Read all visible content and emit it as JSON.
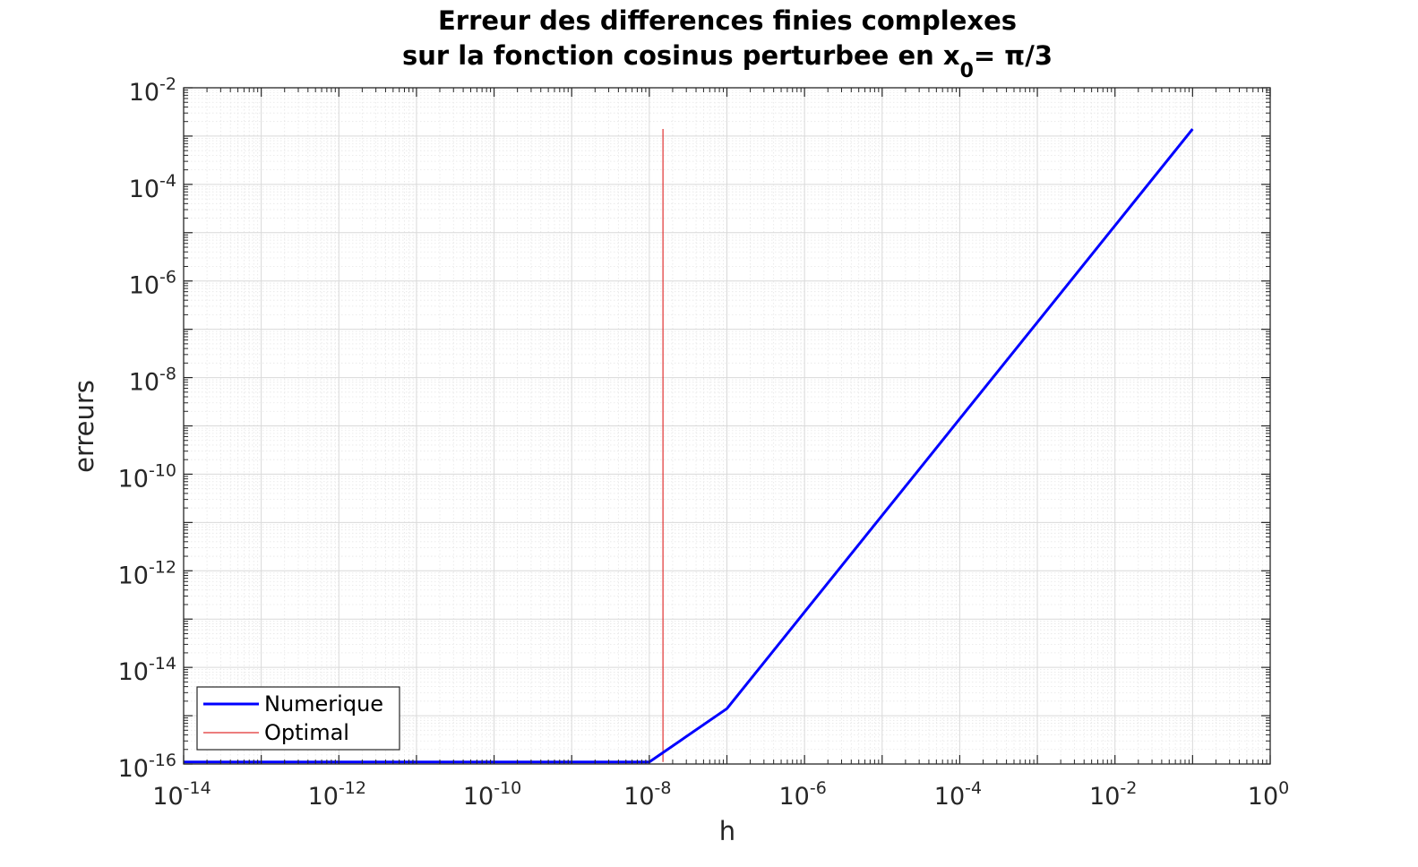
{
  "chart_data": {
    "type": "line",
    "title_line1": "Erreur des differences finies complexes",
    "title_line2_prefix": "sur la fonction cosinus perturbee en x",
    "title_line2_subscript": "0",
    "title_line2_suffix": "= π/3",
    "xlabel": "h",
    "ylabel": "erreurs",
    "xscale": "log",
    "yscale": "log",
    "xlim": [
      1e-14,
      1
    ],
    "ylim": [
      1e-16,
      0.01
    ],
    "grid": true,
    "minor_grid": true,
    "legend_position": "bottom-left",
    "xticks": [
      {
        "base": "10",
        "exp": "-14"
      },
      {
        "base": "10",
        "exp": "-12"
      },
      {
        "base": "10",
        "exp": "-10"
      },
      {
        "base": "10",
        "exp": "-8"
      },
      {
        "base": "10",
        "exp": "-6"
      },
      {
        "base": "10",
        "exp": "-4"
      },
      {
        "base": "10",
        "exp": "-2"
      },
      {
        "base": "10",
        "exp": "0"
      }
    ],
    "yticks": [
      {
        "base": "10",
        "exp": "-16"
      },
      {
        "base": "10",
        "exp": "-14"
      },
      {
        "base": "10",
        "exp": "-12"
      },
      {
        "base": "10",
        "exp": "-10"
      },
      {
        "base": "10",
        "exp": "-8"
      },
      {
        "base": "10",
        "exp": "-6"
      },
      {
        "base": "10",
        "exp": "-4"
      },
      {
        "base": "10",
        "exp": "-2"
      }
    ],
    "series": [
      {
        "name": "Numerique",
        "color": "#0000ff",
        "x": [
          1e-14,
          1e-13,
          1e-12,
          1e-11,
          1e-10,
          1e-09,
          1e-08,
          1e-07,
          1e-06,
          1e-05,
          0.0001,
          0.001,
          0.01,
          0.1
        ],
        "y": [
          1.1e-16,
          1.1e-16,
          1.1e-16,
          1.1e-16,
          1.1e-16,
          1.1e-16,
          1.1e-16,
          1.4e-15,
          1.4e-13,
          1.4e-11,
          1.4e-09,
          1.4e-07,
          1.4e-05,
          0.0014
        ]
      },
      {
        "name": "Optimal",
        "color": "#e03030",
        "x": [
          1.5e-08,
          1.5e-08
        ],
        "y": [
          1.1e-16,
          0.0014
        ]
      }
    ]
  }
}
